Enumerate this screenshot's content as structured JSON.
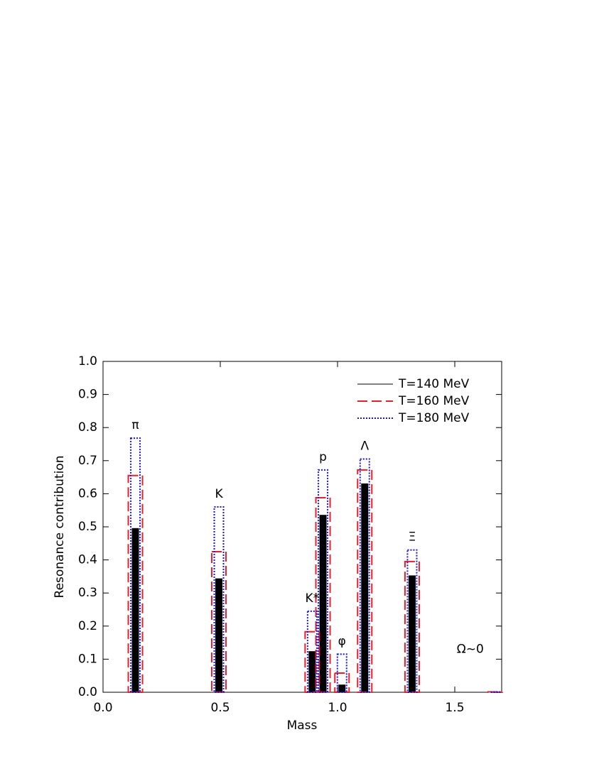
{
  "chart_data": {
    "type": "bar",
    "x_label": "Mass",
    "y_label": "Resonance contribution",
    "categories": [
      "π",
      "K",
      "K*",
      "p",
      "φ",
      "Λ",
      "Ξ",
      "Ω~0"
    ],
    "x": [
      0.138,
      0.494,
      0.892,
      0.938,
      1.019,
      1.116,
      1.318,
      1.672
    ],
    "series": [
      {
        "name": "T=140 MeV",
        "color": "#000000",
        "linestyle": "solid",
        "values": [
          0.495,
          0.343,
          0.123,
          0.535,
          0.022,
          0.63,
          0.352,
          0
        ]
      },
      {
        "name": "T=160 MeV",
        "color": "#e8202a",
        "linestyle": "dashed",
        "values": [
          0.655,
          0.425,
          0.183,
          0.588,
          0.058,
          0.672,
          0.395,
          0
        ]
      },
      {
        "name": "T=180 MeV",
        "color": "#1a1ad0",
        "linestyle": "dotted",
        "values": [
          0.768,
          0.56,
          0.245,
          0.672,
          0.115,
          0.705,
          0.43,
          0
        ]
      }
    ],
    "xlim": [
      0,
      1.7
    ],
    "ylim": [
      0,
      1.0
    ],
    "xticks": [
      {
        "value": 0,
        "label": "0.0"
      },
      0.5,
      {
        "value": 1,
        "label": "1.0"
      },
      1.5
    ],
    "yticks": [
      {
        "value": 0,
        "label": "0.0"
      },
      0.1,
      0.2,
      0.3,
      0.4,
      0.5,
      0.6,
      0.7,
      0.8,
      0.9,
      {
        "value": 1,
        "label": "1.0"
      }
    ],
    "legend": "upper right"
  }
}
